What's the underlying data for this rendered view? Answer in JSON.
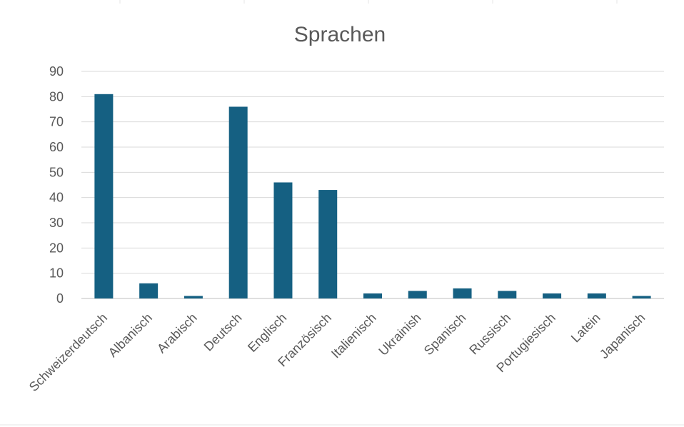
{
  "chart_data": {
    "type": "bar",
    "title": "Sprachen",
    "xlabel": "",
    "ylabel": "",
    "ylim": [
      0,
      90
    ],
    "yticks": [
      0,
      10,
      20,
      30,
      40,
      50,
      60,
      70,
      80,
      90
    ],
    "grid": true,
    "legend": "none",
    "bar_color": "#156082",
    "categories": [
      "Schweizerdeutsch",
      "Albanisch",
      "Arabisch",
      "Deutsch",
      "Englisch",
      "Französisch",
      "Italienisch",
      "Ukrainish",
      "Spanisch",
      "Russisch",
      "Portugiesisch",
      "Latein",
      "Japanisch"
    ],
    "values": [
      81,
      6,
      1,
      76,
      46,
      43,
      2,
      3,
      4,
      3,
      2,
      2,
      1
    ]
  }
}
